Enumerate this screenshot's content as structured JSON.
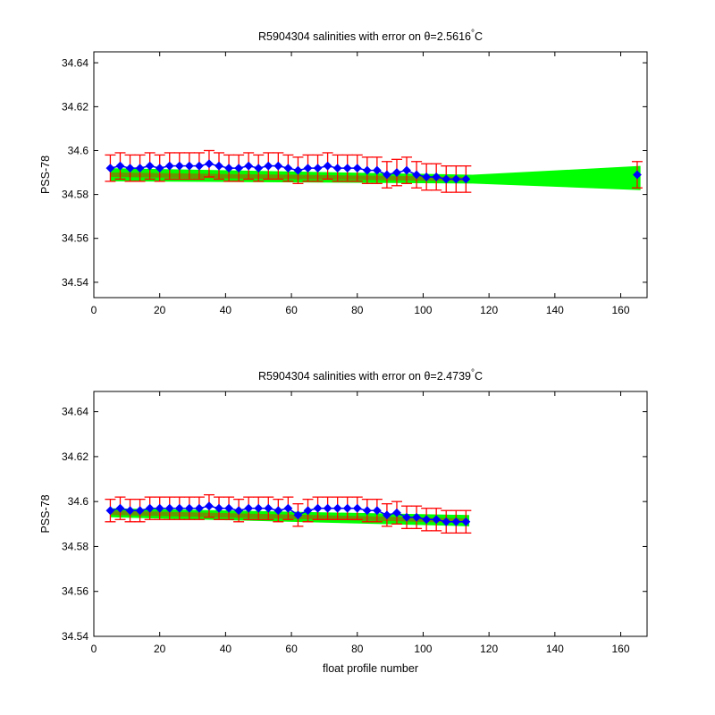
{
  "chart_data": [
    {
      "type": "line",
      "title": "R5904304 salinities with error on θ=2.5616°C",
      "title_parts": {
        "main": "R5904304 salinities with error on θ=2.5616",
        "degree": "°",
        "unit": "C"
      },
      "xlabel": "",
      "ylabel": "PSS-78",
      "xlim": [
        0,
        168
      ],
      "ylim": [
        34.533,
        34.645
      ],
      "xticks": [
        0,
        20,
        40,
        60,
        80,
        100,
        120,
        140,
        160
      ],
      "yticks": [
        34.54,
        34.56,
        34.58,
        34.6,
        34.62,
        34.64
      ],
      "xtick_labels": [
        "0",
        "20",
        "40",
        "60",
        "80",
        "100",
        "120",
        "140",
        "160"
      ],
      "ytick_labels": [
        "34.54",
        "34.56",
        "34.58",
        "34.6",
        "34.62",
        "34.64"
      ],
      "grid": false,
      "colors": {
        "salinity": "#0000ff",
        "error": "#ff0000",
        "calibration": "#00ff00",
        "calibration_core": "#808000"
      },
      "series": [
        {
          "x": [
            5,
            8,
            11,
            14,
            17,
            20,
            23,
            26,
            29,
            32,
            35,
            38,
            41,
            44,
            47,
            50,
            53,
            56,
            59,
            62,
            65,
            68,
            71,
            74,
            77,
            80,
            83,
            86,
            89,
            92,
            95,
            98,
            101,
            104,
            107,
            110,
            113,
            165
          ],
          "values": [
            34.592,
            34.593,
            34.592,
            34.592,
            34.593,
            34.592,
            34.593,
            34.593,
            34.593,
            34.593,
            34.594,
            34.593,
            34.592,
            34.592,
            34.593,
            34.592,
            34.593,
            34.593,
            34.592,
            34.591,
            34.592,
            34.592,
            34.593,
            34.592,
            34.592,
            34.592,
            34.591,
            34.591,
            34.589,
            34.59,
            34.591,
            34.589,
            34.588,
            34.588,
            34.587,
            34.587,
            34.587,
            34.589
          ],
          "err": [
            0.006,
            0.006,
            0.006,
            0.006,
            0.006,
            0.006,
            0.006,
            0.006,
            0.006,
            0.006,
            0.006,
            0.006,
            0.006,
            0.006,
            0.006,
            0.006,
            0.006,
            0.006,
            0.006,
            0.006,
            0.006,
            0.006,
            0.006,
            0.006,
            0.006,
            0.006,
            0.006,
            0.006,
            0.006,
            0.006,
            0.006,
            0.006,
            0.006,
            0.006,
            0.006,
            0.006,
            0.006,
            0.006
          ]
        },
        {
          "x": [
            5,
            115,
            166
          ],
          "upper": [
            34.592,
            34.589,
            34.593
          ],
          "lower": [
            34.586,
            34.585,
            34.582
          ]
        }
      ]
    },
    {
      "type": "line",
      "title": "R5904304 salinities with error on θ=2.4739°C",
      "title_parts": {
        "main": "R5904304 salinities with error on θ=2.4739",
        "degree": "°",
        "unit": "C"
      },
      "xlabel": "float profile number",
      "ylabel": "PSS-78",
      "xlim": [
        0,
        168
      ],
      "ylim": [
        34.54,
        34.649
      ],
      "xticks": [
        0,
        20,
        40,
        60,
        80,
        100,
        120,
        140,
        160
      ],
      "yticks": [
        34.54,
        34.56,
        34.58,
        34.6,
        34.62,
        34.64
      ],
      "xtick_labels": [
        "0",
        "20",
        "40",
        "60",
        "80",
        "100",
        "120",
        "140",
        "160"
      ],
      "ytick_labels": [
        "34.54",
        "34.56",
        "34.58",
        "34.6",
        "34.62",
        "34.64"
      ],
      "grid": false,
      "colors": {
        "salinity": "#0000ff",
        "error": "#ff0000",
        "calibration": "#00ff00",
        "calibration_core": "#808000"
      },
      "series": [
        {
          "x": [
            5,
            8,
            11,
            14,
            17,
            20,
            23,
            26,
            29,
            32,
            35,
            38,
            41,
            44,
            47,
            50,
            53,
            56,
            59,
            62,
            65,
            68,
            71,
            74,
            77,
            80,
            83,
            86,
            89,
            92,
            95,
            98,
            101,
            104,
            107,
            110,
            113
          ],
          "values": [
            34.596,
            34.597,
            34.596,
            34.596,
            34.597,
            34.597,
            34.597,
            34.597,
            34.597,
            34.597,
            34.598,
            34.597,
            34.597,
            34.596,
            34.597,
            34.597,
            34.597,
            34.596,
            34.597,
            34.594,
            34.596,
            34.597,
            34.597,
            34.597,
            34.597,
            34.597,
            34.596,
            34.596,
            34.594,
            34.595,
            34.593,
            34.593,
            34.592,
            34.592,
            34.591,
            34.591,
            34.591
          ],
          "err": [
            0.005,
            0.005,
            0.005,
            0.005,
            0.005,
            0.005,
            0.005,
            0.005,
            0.005,
            0.005,
            0.005,
            0.005,
            0.005,
            0.005,
            0.005,
            0.005,
            0.005,
            0.005,
            0.005,
            0.005,
            0.005,
            0.005,
            0.005,
            0.005,
            0.005,
            0.005,
            0.005,
            0.005,
            0.005,
            0.005,
            0.005,
            0.005,
            0.005,
            0.005,
            0.005,
            0.005,
            0.005
          ]
        },
        {
          "x": [
            5,
            114
          ],
          "upper": [
            34.597,
            34.594
          ],
          "lower": [
            34.593,
            34.589
          ]
        }
      ]
    }
  ]
}
